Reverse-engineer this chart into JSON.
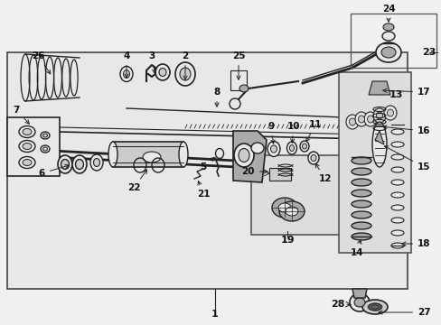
{
  "bg_color": "#f0f0f0",
  "diagram_bg": "#e8e8e8",
  "line_color": "#222222",
  "text_color": "#111111",
  "white": "#ffffff",
  "light_gray": "#cccccc",
  "mid_gray": "#aaaaaa",
  "dark_gray": "#666666",
  "figsize": [
    4.89,
    3.6
  ],
  "dpi": 100
}
